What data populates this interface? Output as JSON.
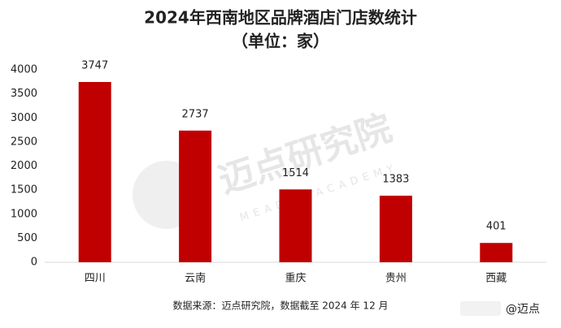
{
  "chart_data": {
    "type": "bar",
    "title": "2024年西南地区品牌酒店门店数统计",
    "subtitle": "（单位：家）",
    "categories": [
      "四川",
      "云南",
      "重庆",
      "贵州",
      "西藏"
    ],
    "values": [
      3747,
      2737,
      1514,
      1383,
      401
    ],
    "color": "#c00000",
    "ylim": [
      0,
      4000
    ],
    "yticks": [
      0,
      500,
      1000,
      1500,
      2000,
      2500,
      3000,
      3500,
      4000
    ],
    "grid": false,
    "source": "数据来源：迈点研究院，数据截至 2024 年 12 月",
    "watermark": "迈点研究院",
    "watermark_sub": "MEADIN ACADEMY",
    "credit": "@迈点"
  }
}
